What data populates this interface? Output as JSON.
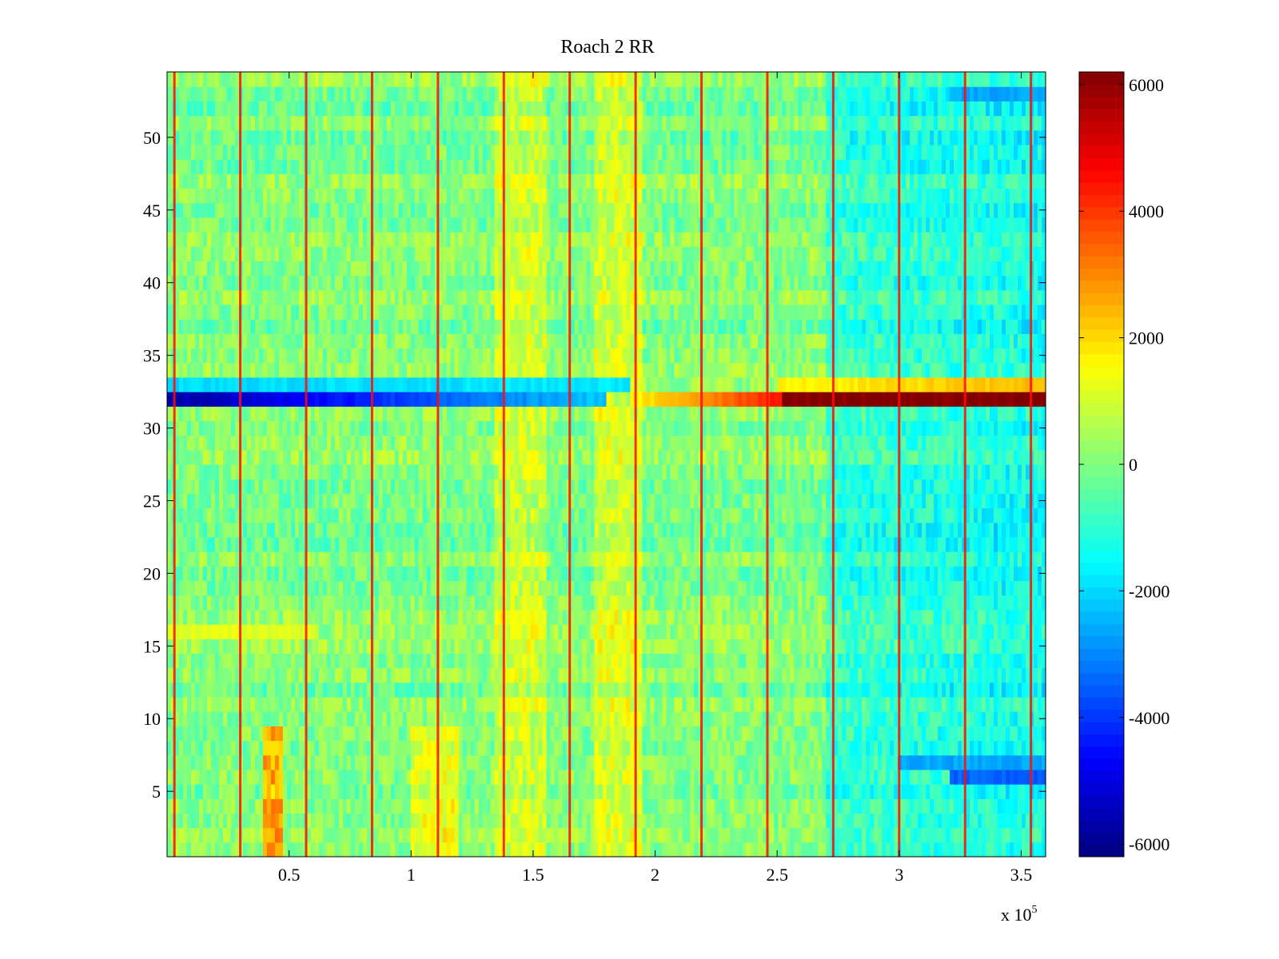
{
  "chart_data": {
    "type": "heatmap",
    "title": "Roach 2 RR",
    "xlabel": "",
    "ylabel": "",
    "x_exponent_label": "x 10",
    "x_exponent_power": "5",
    "xlim": [
      0,
      360000
    ],
    "ylim": [
      0.5,
      54.5
    ],
    "rows": 54,
    "x_ticks": [
      {
        "value": 50000,
        "label": "0.5"
      },
      {
        "value": 100000,
        "label": "1"
      },
      {
        "value": 150000,
        "label": "1.5"
      },
      {
        "value": 200000,
        "label": "2"
      },
      {
        "value": 250000,
        "label": "2.5"
      },
      {
        "value": 300000,
        "label": "3"
      },
      {
        "value": 350000,
        "label": "3.5"
      }
    ],
    "y_ticks": [
      {
        "value": 5,
        "label": "5"
      },
      {
        "value": 10,
        "label": "10"
      },
      {
        "value": 15,
        "label": "15"
      },
      {
        "value": 20,
        "label": "20"
      },
      {
        "value": 25,
        "label": "25"
      },
      {
        "value": 30,
        "label": "30"
      },
      {
        "value": 35,
        "label": "35"
      },
      {
        "value": 40,
        "label": "40"
      },
      {
        "value": 45,
        "label": "45"
      },
      {
        "value": 50,
        "label": "50"
      }
    ],
    "colorbar": {
      "colormap": "jet",
      "clim": [
        -6200,
        6200
      ],
      "ticks": [
        {
          "value": 6000,
          "label": "6000"
        },
        {
          "value": 4000,
          "label": "4000"
        },
        {
          "value": 2000,
          "label": "2000"
        },
        {
          "value": 0,
          "label": "0"
        },
        {
          "value": -2000,
          "label": "-2000"
        },
        {
          "value": -4000,
          "label": "-4000"
        },
        {
          "value": -6000,
          "label": "-6000"
        }
      ]
    },
    "background_level": 0,
    "spike_columns_x": [
      3000,
      30000,
      57000,
      84000,
      111000,
      138000,
      165000,
      192000,
      219000,
      246000,
      273000,
      300000,
      327000,
      354000
    ],
    "spike_level": 4500,
    "features": [
      {
        "row": 32,
        "x_range": [
          0,
          180000
        ],
        "level_start": -5800,
        "level_end": -2200,
        "description": "strong negative band"
      },
      {
        "row": 32,
        "x_range": [
          190000,
          252000
        ],
        "level_start": 1500,
        "level_end": 4500
      },
      {
        "row": 32,
        "x_range": [
          252000,
          360000
        ],
        "level_start": 6200,
        "level_end": 6200
      },
      {
        "row": 33,
        "x_range": [
          0,
          190000
        ],
        "level_start": -2000,
        "level_end": -1800
      },
      {
        "row": 33,
        "x_range": [
          250000,
          360000
        ],
        "level_start": 1600,
        "level_end": 2400
      },
      {
        "row": 6,
        "x_range": [
          320000,
          360000
        ],
        "level_start": -3500,
        "level_end": -3500
      },
      {
        "row": 7,
        "x_range": [
          300000,
          360000
        ],
        "level_start": -2600,
        "level_end": -2600
      },
      {
        "row": 53,
        "x_range": [
          320000,
          360000
        ],
        "level_start": -2600,
        "level_end": -2600
      },
      {
        "row": 16,
        "x_range": [
          0,
          60000
        ],
        "level_start": 1200,
        "level_end": 1200
      },
      {
        "rows": [
          1,
          9
        ],
        "x_range": [
          100000,
          120000
        ],
        "level_start": 1200,
        "level_end": 1200
      },
      {
        "rows": [
          1,
          9
        ],
        "x_range": [
          40000,
          47000
        ],
        "level_start": 2500,
        "level_end": 2500
      },
      {
        "rows": [
          1,
          54
        ],
        "x_range": [
          135000,
          155000
        ],
        "level_start": 900,
        "level_end": 900
      },
      {
        "rows": [
          1,
          54
        ],
        "x_range": [
          175000,
          195000
        ],
        "level_start": 1000,
        "level_end": 1000
      },
      {
        "rows": [
          1,
          54
        ],
        "x_range": [
          270000,
          360000
        ],
        "level_start": -900,
        "level_end": -1400
      }
    ]
  }
}
